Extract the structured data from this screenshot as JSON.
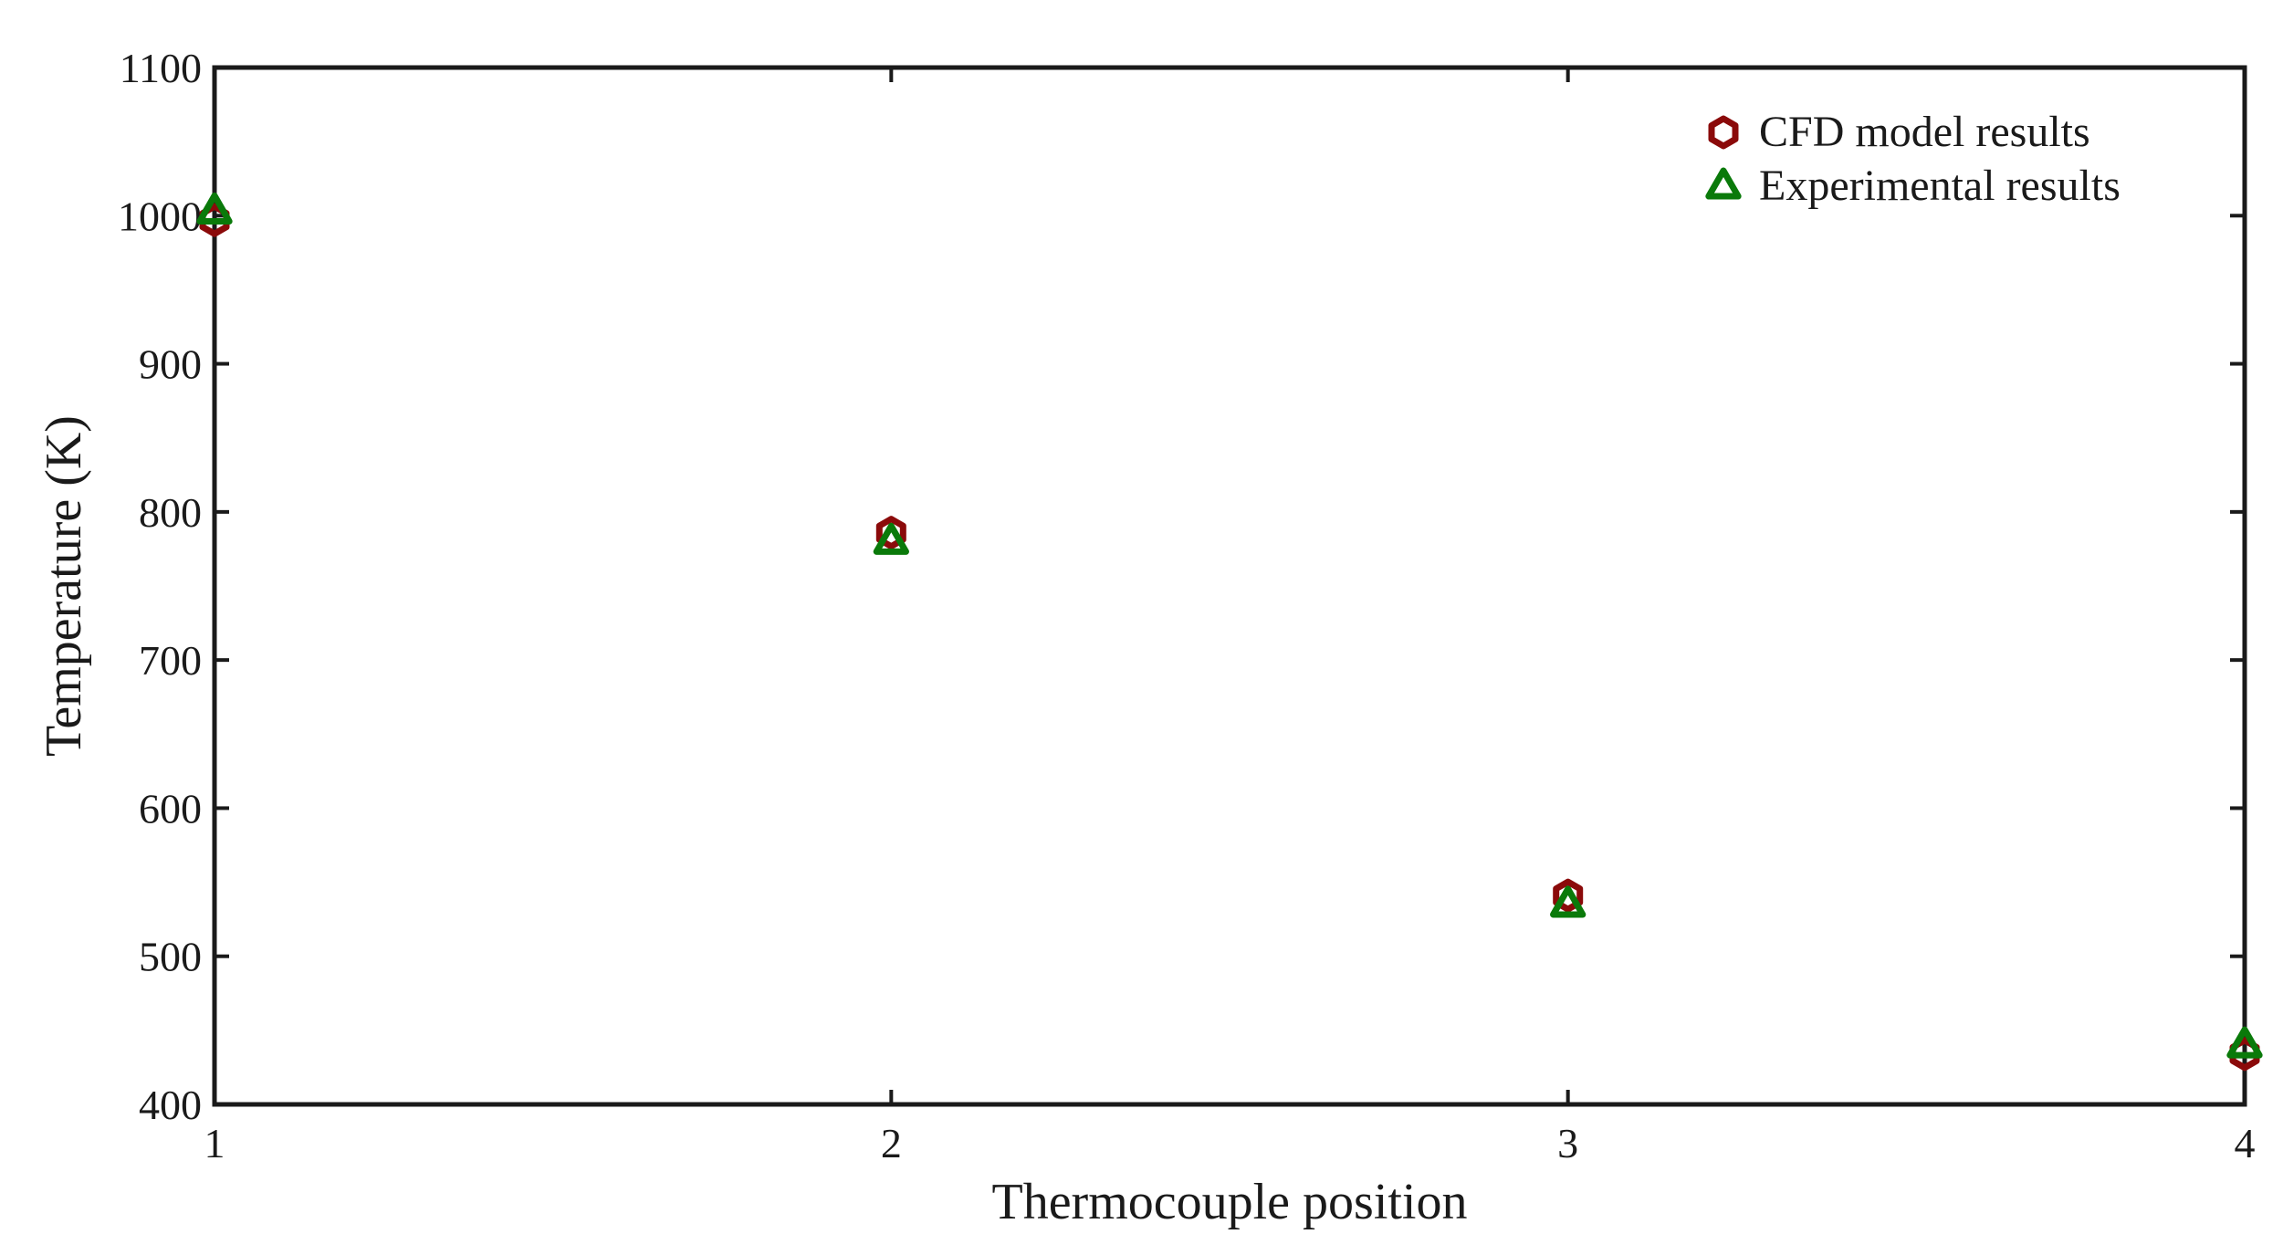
{
  "chart_data": {
    "type": "scatter",
    "title": "",
    "xlabel": "Thermocouple position",
    "ylabel": "Temperature (K)",
    "xlim": [
      1,
      4
    ],
    "ylim": [
      400,
      1100
    ],
    "xticks": [
      1,
      2,
      3,
      4
    ],
    "yticks": [
      400,
      500,
      600,
      700,
      800,
      900,
      1000,
      1100
    ],
    "grid": false,
    "legend_position": "top-right",
    "series": [
      {
        "name": "CFD model results",
        "marker": "hexagon",
        "color": "#8b0a0a",
        "x": [
          1,
          2,
          3,
          4
        ],
        "y": [
          997,
          786,
          541,
          434
        ]
      },
      {
        "name": "Experimental results",
        "marker": "triangle",
        "color": "#0a7a0a",
        "x": [
          1,
          2,
          3,
          4
        ],
        "y": [
          1003,
          780,
          535,
          440
        ]
      }
    ]
  }
}
